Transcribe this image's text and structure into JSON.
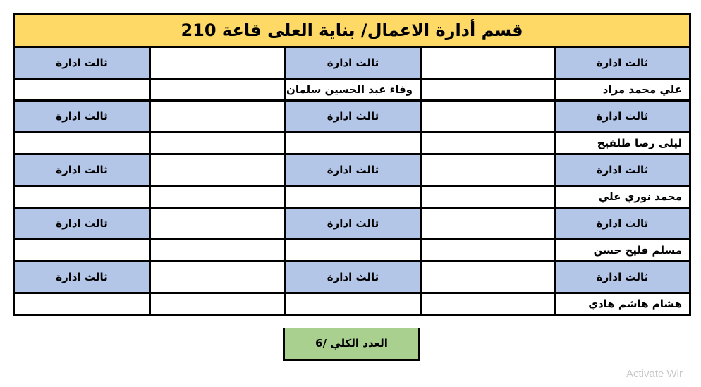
{
  "title": "قسم أدارة الاعمال/ بناية العلى قاعة 210",
  "header_label": "ثالث ادارة",
  "groups": [
    {
      "names": [
        "علي محمد مراد",
        "",
        "وفاء عبد الحسين سلمان",
        "",
        ""
      ]
    },
    {
      "names": [
        "ليلى رضا طلفيح",
        "",
        "",
        "",
        ""
      ]
    },
    {
      "names": [
        "محمد نوري علي",
        "",
        "",
        "",
        ""
      ]
    },
    {
      "names": [
        "مسلم فليح حسن",
        "",
        "",
        "",
        ""
      ]
    },
    {
      "names": [
        "هشام هاشم هادي",
        "",
        "",
        "",
        ""
      ]
    }
  ],
  "total": "العدد الكلي /6",
  "watermark": "Activate Wir",
  "colors": {
    "title": "#ffd966",
    "header": "#b4c6e7",
    "total": "#a9d08e"
  }
}
